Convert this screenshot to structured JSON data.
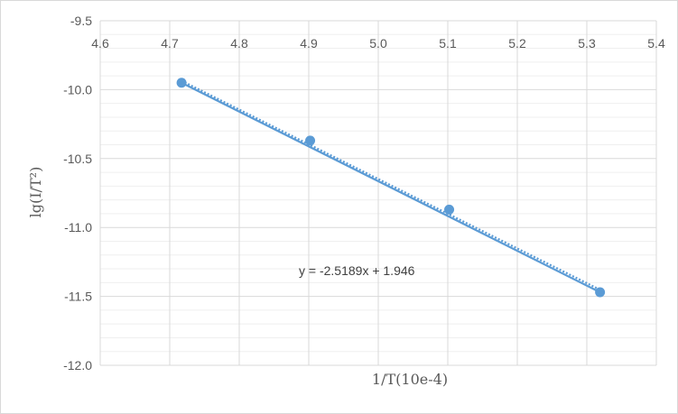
{
  "chart_data": {
    "type": "scatter",
    "title": "",
    "xlabel": "1/T(10e-4)",
    "ylabel": "lg(I/T²)",
    "xlim": [
      4.6,
      5.4
    ],
    "ylim": [
      -12.0,
      -9.5
    ],
    "x_ticks": [
      "4.6",
      "4.7",
      "4.8",
      "4.9",
      "5.0",
      "5.1",
      "5.2",
      "5.3",
      "5.4"
    ],
    "y_ticks": [
      "-9.5",
      "-10.0",
      "-10.5",
      "-11.0",
      "-11.5",
      "-12.0"
    ],
    "x_axis_position": "top",
    "grid": true,
    "minor_grid": true,
    "series": [
      {
        "type": "scatter",
        "color": "#5b9bd5",
        "x": [
          4.717,
          4.902,
          5.102,
          5.319
        ],
        "y": [
          -9.95,
          -10.37,
          -10.87,
          -11.47
        ]
      }
    ],
    "lines": [
      {
        "style": "solid",
        "color": "#5b9bd5",
        "x": [
          4.717,
          5.319
        ],
        "y": [
          -9.95,
          -11.47
        ]
      },
      {
        "style": "dotted",
        "color": "#5b9bd5",
        "slope": -2.5189,
        "intercept": 1.946,
        "x": [
          4.717,
          5.319
        ]
      }
    ],
    "annotation": "y = -2.5189x + 1.946",
    "colors": {
      "series": "#5b9bd5",
      "grid": "#d9d9d9",
      "minor_grid": "#efefef",
      "text": "#595959"
    }
  }
}
